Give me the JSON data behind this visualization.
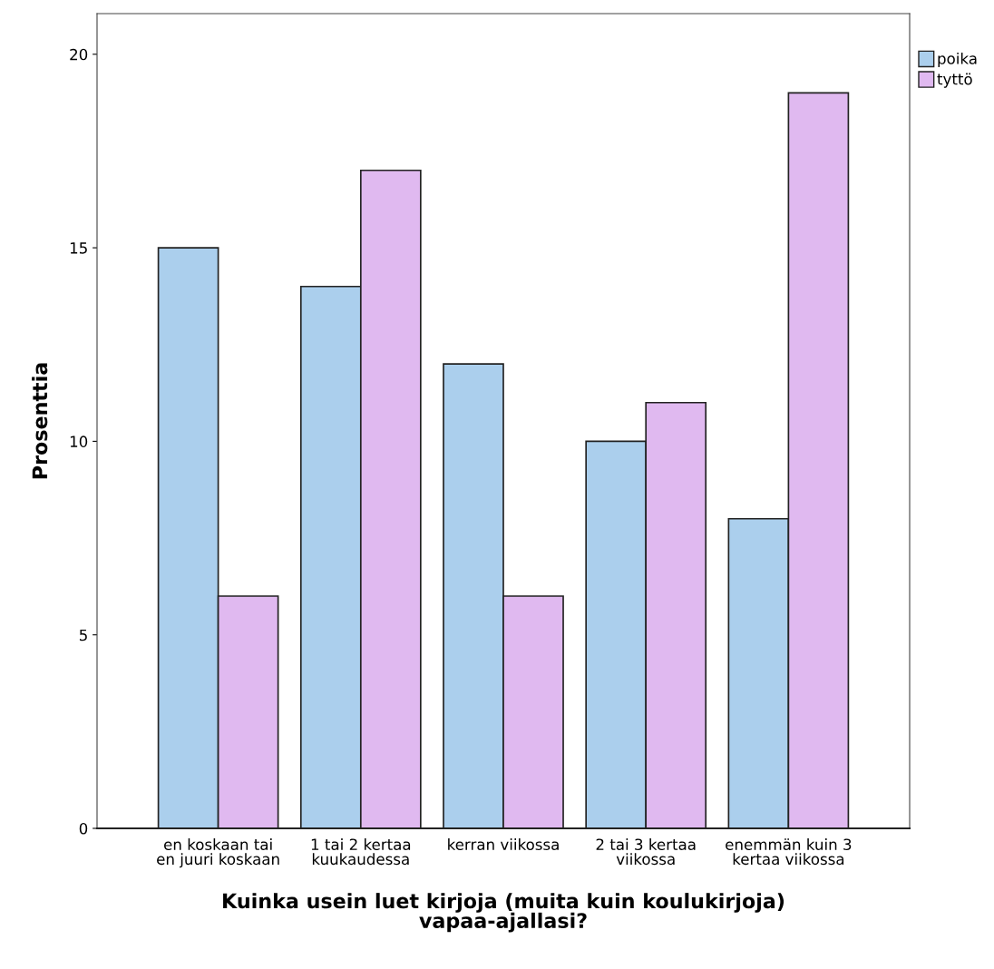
{
  "chart_data": {
    "type": "bar",
    "xlabel": "Kuinka usein luet kirjoja (muita kuin koulukirjoja)\nvapaa-ajallasi?",
    "ylabel": "Prosenttia",
    "categories": [
      "en koskaan tai\nen juuri koskaan",
      "1 tai 2 kertaa\nkuukaudessa",
      "kerran viikossa",
      "2 tai 3 kertaa\nviikossa",
      "enemmän kuin 3\nkertaa viikossa"
    ],
    "series": [
      {
        "name": "poika",
        "color": "#abcfed",
        "values": [
          15,
          14,
          12,
          10,
          8
        ]
      },
      {
        "name": "tyttö",
        "color": "#e0b9f0",
        "values": [
          6,
          17,
          6,
          11,
          19
        ]
      }
    ],
    "ylim": [
      0,
      21.05
    ],
    "yticks": [
      0,
      5,
      10,
      15,
      20
    ],
    "grid": false,
    "legend": "top right"
  }
}
